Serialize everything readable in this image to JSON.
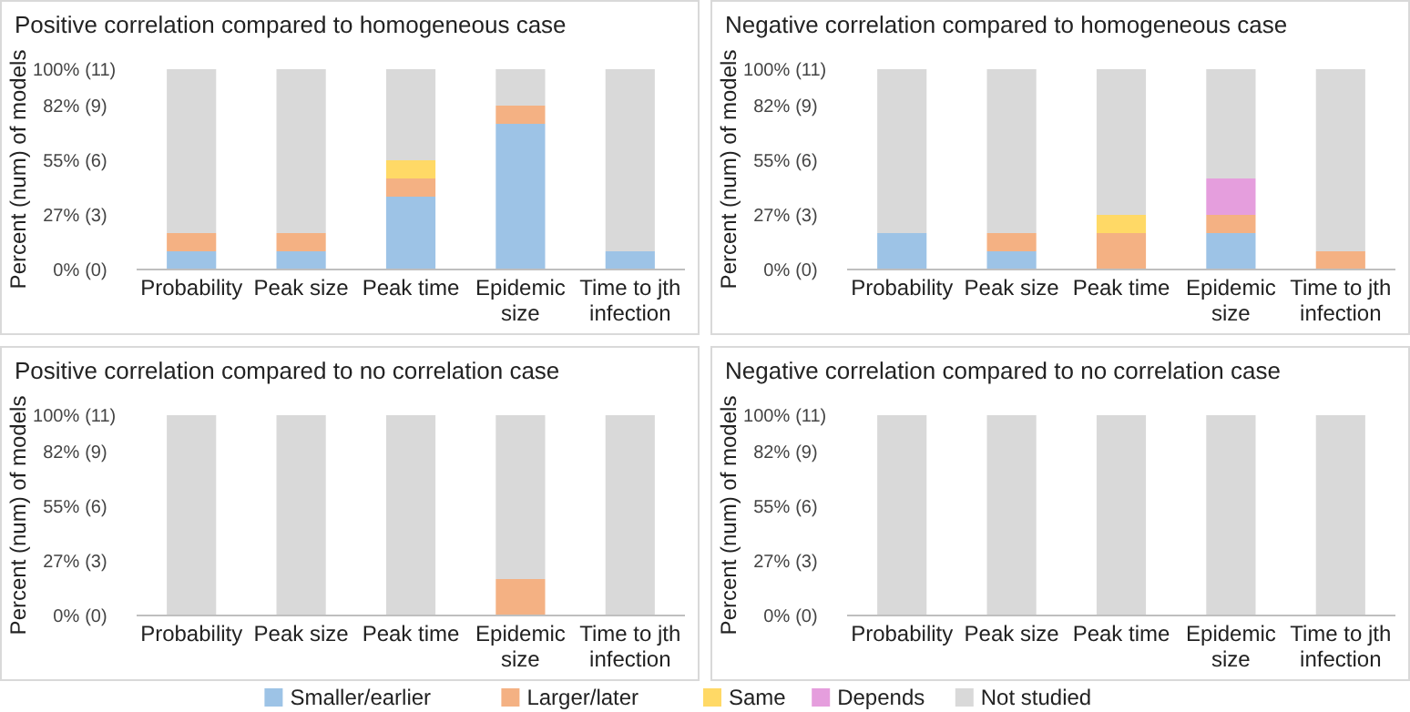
{
  "chart_data": [
    {
      "type": "bar",
      "stacked": true,
      "title": "Positive correlation compared to homogeneous case",
      "ylabel": "Percent (num) of models",
      "categories": [
        "Probability",
        "Peak size",
        "Peak time",
        "Epidemic size",
        "Time to jth infection"
      ],
      "ylim": [
        0,
        100
      ],
      "yticks": [
        {
          "value": 0,
          "label": "0%"
        },
        {
          "value": 27.27,
          "label": "27%"
        },
        {
          "value": 54.55,
          "label": "55%"
        },
        {
          "value": 81.82,
          "label": "82%"
        },
        {
          "value": 100,
          "label": "100%"
        }
      ],
      "y2lim": [
        0,
        11
      ],
      "y2ticks": [
        {
          "value": 0,
          "label": "(0)"
        },
        {
          "value": 3,
          "label": "(3)"
        },
        {
          "value": 6,
          "label": "(6)"
        },
        {
          "value": 9,
          "label": "(9)"
        },
        {
          "value": 11,
          "label": "(11)"
        }
      ],
      "series": [
        {
          "color": "#9dc3e6",
          "values": [
            9.09,
            9.09,
            36.36,
            72.73,
            9.09
          ]
        },
        {
          "color": "#f4b183",
          "values": [
            9.09,
            9.09,
            9.09,
            9.09,
            0
          ]
        },
        {
          "color": "#ffd966",
          "values": [
            0,
            0,
            9.09,
            0,
            0
          ]
        },
        {
          "color": "#e59edd",
          "values": [
            0,
            0,
            0,
            0,
            0
          ]
        },
        {
          "color": "#d9d9d9",
          "values": [
            81.82,
            81.82,
            45.45,
            18.18,
            90.91
          ]
        }
      ]
    },
    {
      "type": "bar",
      "stacked": true,
      "title": "Negative correlation compared to homogeneous case",
      "ylabel": "Percent (num) of models",
      "categories": [
        "Probability",
        "Peak size",
        "Peak time",
        "Epidemic size",
        "Time to jth infection"
      ],
      "ylim": [
        0,
        100
      ],
      "yticks": [
        {
          "value": 0,
          "label": "0%"
        },
        {
          "value": 27.27,
          "label": "27%"
        },
        {
          "value": 54.55,
          "label": "55%"
        },
        {
          "value": 81.82,
          "label": "82%"
        },
        {
          "value": 100,
          "label": "100%"
        }
      ],
      "y2lim": [
        0,
        11
      ],
      "y2ticks": [
        {
          "value": 0,
          "label": "(0)"
        },
        {
          "value": 3,
          "label": "(3)"
        },
        {
          "value": 6,
          "label": "(6)"
        },
        {
          "value": 9,
          "label": "(9)"
        },
        {
          "value": 11,
          "label": "(11)"
        }
      ],
      "legend": "bottom",
      "series": [
        {
          "name": "Smaller/earlier",
          "color": "#9dc3e6",
          "values": [
            18.18,
            9.09,
            0,
            18.18,
            0
          ]
        },
        {
          "name": "Larger/later",
          "color": "#f4b183",
          "values": [
            0,
            9.09,
            18.18,
            9.09,
            9.09
          ]
        },
        {
          "name": "Same",
          "color": "#ffd966",
          "values": [
            0,
            0,
            9.09,
            0,
            0
          ]
        },
        {
          "name": "Depends",
          "color": "#e59edd",
          "values": [
            0,
            0,
            0,
            18.18,
            0
          ]
        },
        {
          "name": "Not studied",
          "color": "#d9d9d9",
          "values": [
            81.82,
            81.82,
            72.73,
            54.55,
            90.91
          ]
        }
      ]
    },
    {
      "type": "bar",
      "stacked": true,
      "title": "Positive correlation compared to no correlation case",
      "ylabel": "Percent (num) of models",
      "categories": [
        "Probability",
        "Peak size",
        "Peak time",
        "Epidemic size",
        "Time to jth infection"
      ],
      "ylim": [
        0,
        100
      ],
      "yticks": [
        {
          "value": 0,
          "label": "0%"
        },
        {
          "value": 27.27,
          "label": "27%"
        },
        {
          "value": 54.55,
          "label": "55%"
        },
        {
          "value": 81.82,
          "label": "82%"
        },
        {
          "value": 100,
          "label": "100%"
        }
      ],
      "y2lim": [
        0,
        11
      ],
      "y2ticks": [
        {
          "value": 0,
          "label": "(0)"
        },
        {
          "value": 3,
          "label": "(3)"
        },
        {
          "value": 6,
          "label": "(6)"
        },
        {
          "value": 9,
          "label": "(9)"
        },
        {
          "value": 11,
          "label": "(11)"
        }
      ],
      "series": [
        {
          "color": "#9dc3e6",
          "values": [
            0,
            0,
            0,
            0,
            0
          ]
        },
        {
          "color": "#f4b183",
          "values": [
            0,
            0,
            0,
            18.18,
            0
          ]
        },
        {
          "color": "#ffd966",
          "values": [
            0,
            0,
            0,
            0,
            0
          ]
        },
        {
          "color": "#e59edd",
          "values": [
            0,
            0,
            0,
            0,
            0
          ]
        },
        {
          "color": "#d9d9d9",
          "values": [
            100,
            100,
            100,
            81.82,
            100
          ]
        }
      ]
    },
    {
      "type": "bar",
      "stacked": true,
      "title": "Negative correlation compared to no correlation case",
      "ylabel": "Percent (num) of models",
      "categories": [
        "Probability",
        "Peak size",
        "Peak time",
        "Epidemic size",
        "Time to jth infection"
      ],
      "ylim": [
        0,
        100
      ],
      "yticks": [
        {
          "value": 0,
          "label": "0%"
        },
        {
          "value": 27.27,
          "label": "27%"
        },
        {
          "value": 54.55,
          "label": "55%"
        },
        {
          "value": 81.82,
          "label": "82%"
        },
        {
          "value": 100,
          "label": "100%"
        }
      ],
      "y2lim": [
        0,
        11
      ],
      "y2ticks": [
        {
          "value": 0,
          "label": "(0)"
        },
        {
          "value": 3,
          "label": "(3)"
        },
        {
          "value": 6,
          "label": "(6)"
        },
        {
          "value": 9,
          "label": "(9)"
        },
        {
          "value": 11,
          "label": "(11)"
        }
      ],
      "series": [
        {
          "color": "#9dc3e6",
          "values": [
            0,
            0,
            0,
            0,
            0
          ]
        },
        {
          "color": "#f4b183",
          "values": [
            0,
            0,
            0,
            0,
            0
          ]
        },
        {
          "color": "#ffd966",
          "values": [
            0,
            0,
            0,
            0,
            0
          ]
        },
        {
          "color": "#e59edd",
          "values": [
            0,
            0,
            0,
            0,
            0
          ]
        },
        {
          "color": "#d9d9d9",
          "values": [
            100,
            100,
            100,
            100,
            100
          ]
        }
      ]
    }
  ]
}
